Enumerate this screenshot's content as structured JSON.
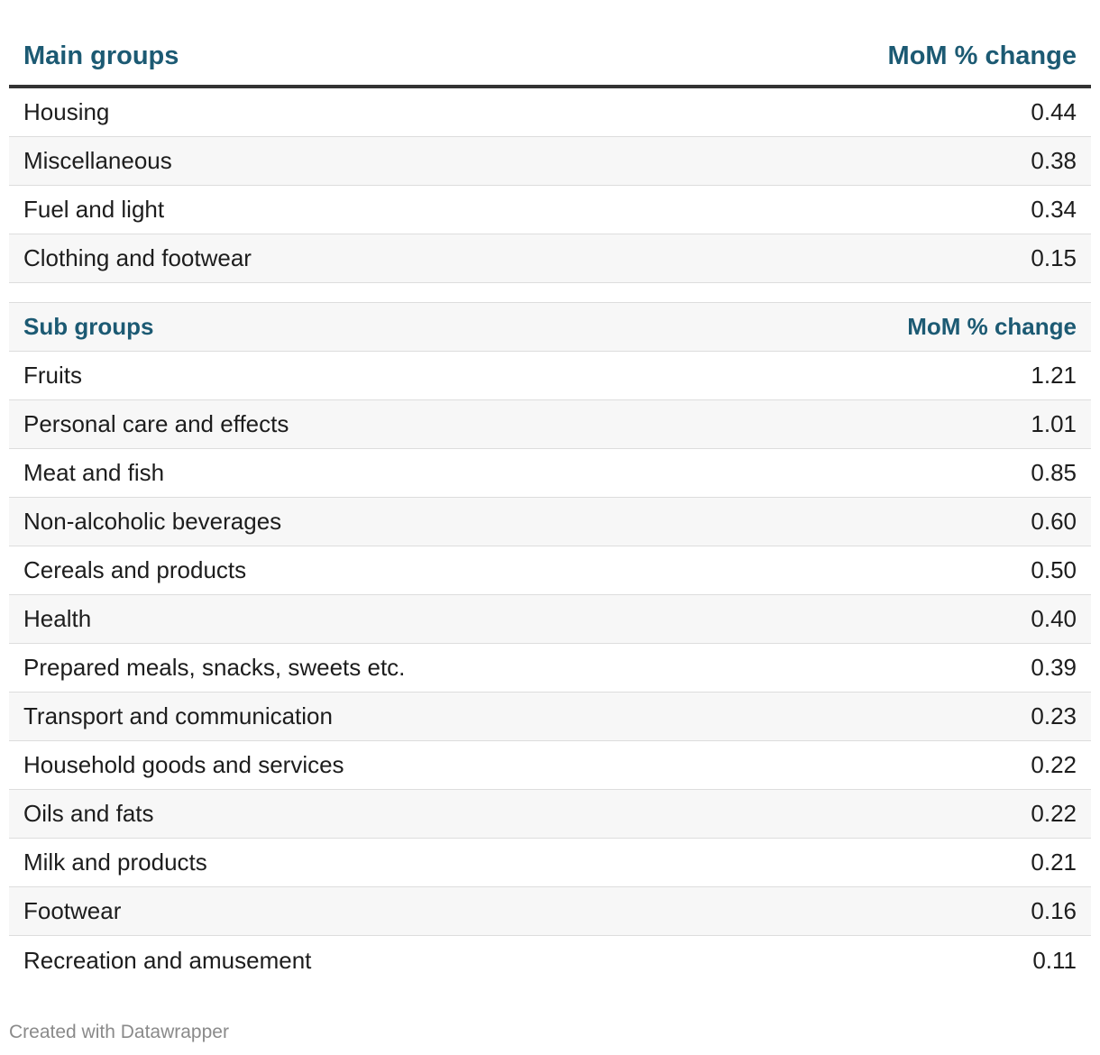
{
  "chart_data": {
    "type": "table",
    "columns": [
      "Main groups",
      "MoM % change"
    ],
    "main_groups": [
      {
        "label": "Housing",
        "value": "0.44"
      },
      {
        "label": "Miscellaneous",
        "value": "0.38"
      },
      {
        "label": "Fuel and light",
        "value": "0.34"
      },
      {
        "label": "Clothing and footwear",
        "value": "0.15"
      }
    ],
    "sub_group_header": [
      "Sub groups",
      "MoM % change"
    ],
    "sub_groups": [
      {
        "label": "Fruits",
        "value": "1.21"
      },
      {
        "label": "Personal care and effects",
        "value": "1.01"
      },
      {
        "label": "Meat and fish",
        "value": "0.85"
      },
      {
        "label": "Non-alcoholic beverages",
        "value": "0.60"
      },
      {
        "label": "Cereals and products",
        "value": "0.50"
      },
      {
        "label": "Health",
        "value": "0.40"
      },
      {
        "label": "Prepared meals, snacks, sweets etc.",
        "value": "0.39"
      },
      {
        "label": "Transport and communication",
        "value": "0.23"
      },
      {
        "label": "Household goods and services",
        "value": "0.22"
      },
      {
        "label": "Oils and fats",
        "value": "0.22"
      },
      {
        "label": "Milk and products",
        "value": "0.21"
      },
      {
        "label": "Footwear",
        "value": "0.16"
      },
      {
        "label": "Recreation and amusement",
        "value": "0.11"
      }
    ]
  },
  "colors": {
    "header_text": "#1c5a73",
    "stripe": "#f7f7f7",
    "header_rule": "#333333"
  },
  "footer": {
    "credit": "Created with Datawrapper"
  }
}
